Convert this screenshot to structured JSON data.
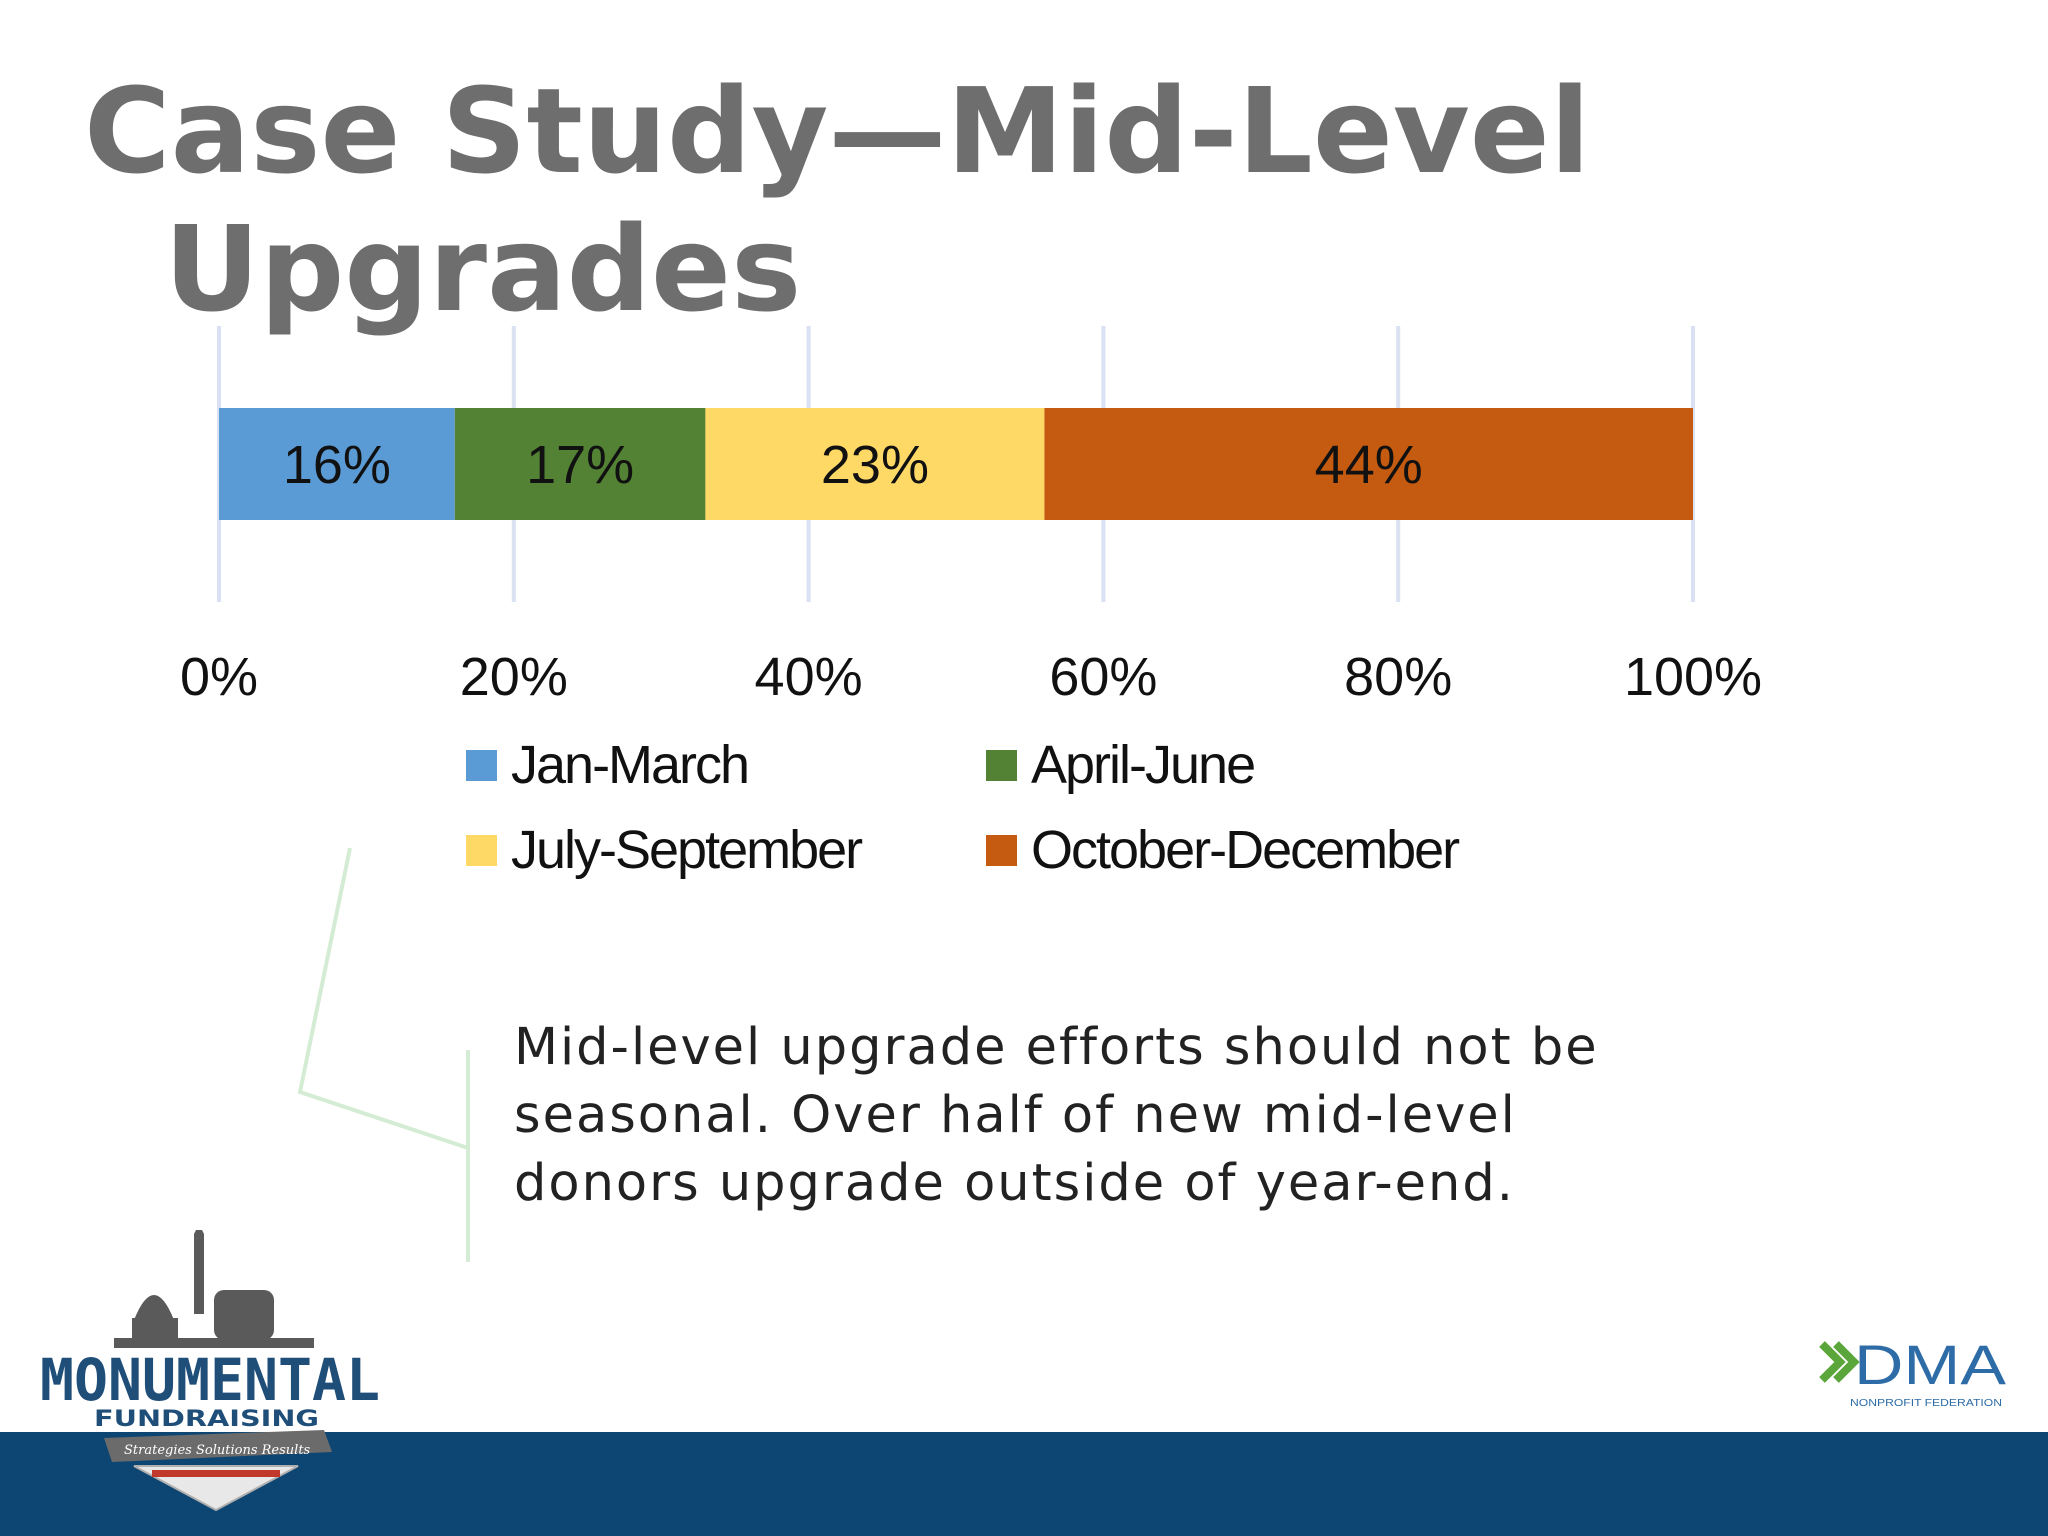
{
  "slide": {
    "title_line1": "Case Study—Mid-Level",
    "title_line2": "Upgrades",
    "note": "Mid-level upgrade efforts should not be seasonal.  Over half of new mid-level donors upgrade outside of year-end."
  },
  "chart_data": {
    "type": "bar",
    "orientation": "horizontal",
    "stacked": true,
    "categories": [
      ""
    ],
    "series": [
      {
        "name": "Jan-March",
        "values": [
          16
        ],
        "label": "16%",
        "color": "#5b9bd5"
      },
      {
        "name": "April-June",
        "values": [
          17
        ],
        "label": "17%",
        "color": "#548235"
      },
      {
        "name": "July-September",
        "values": [
          23
        ],
        "label": "23%",
        "color": "#ffd966"
      },
      {
        "name": "October-December",
        "values": [
          44
        ],
        "label": "44%",
        "color": "#c55a11"
      }
    ],
    "xlim": [
      0,
      100
    ],
    "xticks": [
      0,
      20,
      40,
      60,
      80,
      100
    ],
    "xtick_labels": [
      "0%",
      "20%",
      "40%",
      "60%",
      "80%",
      "100%"
    ],
    "grid": true,
    "legend": "bottom"
  },
  "logos": {
    "left_name": "MONUMENTAL",
    "left_sub": "FUNDRAISING",
    "left_tagline": "Strategies  Solutions  Results",
    "right_name": "DMA",
    "right_sub": "NONPROFIT FEDERATION"
  },
  "colors": {
    "footer_band": "#0e4673",
    "title_text": "#6e6e6e",
    "gridline": "#d9e1f2",
    "callout_line": "#d5ecd4",
    "dma_green": "#5aa63a",
    "dma_blue": "#2d6ca6"
  }
}
